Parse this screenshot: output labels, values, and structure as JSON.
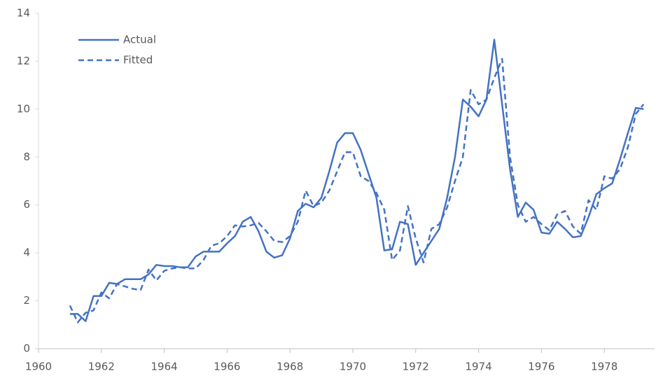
{
  "chart_data": {
    "type": "line",
    "x": [
      1961,
      1961.25,
      1961.5,
      1961.75,
      1962,
      1962.25,
      1962.5,
      1962.75,
      1963,
      1963.25,
      1963.5,
      1963.75,
      1964,
      1964.25,
      1964.5,
      1964.75,
      1965,
      1965.25,
      1965.5,
      1965.75,
      1966,
      1966.25,
      1966.5,
      1966.75,
      1967,
      1967.25,
      1967.5,
      1967.75,
      1968,
      1968.25,
      1968.5,
      1968.75,
      1969,
      1969.25,
      1969.5,
      1969.75,
      1970,
      1970.25,
      1970.5,
      1970.75,
      1971,
      1971.25,
      1971.5,
      1971.75,
      1972,
      1972.25,
      1972.5,
      1972.75,
      1973,
      1973.25,
      1973.5,
      1973.75,
      1974,
      1974.25,
      1974.5,
      1974.75,
      1975,
      1975.25,
      1975.5,
      1975.75,
      1976,
      1976.25,
      1976.5,
      1976.75,
      1977,
      1977.25,
      1977.5,
      1977.75,
      1978,
      1978.25,
      1978.5,
      1978.75,
      1979,
      1979.25
    ],
    "series": [
      {
        "name": "Actual",
        "color": "#4472c4",
        "dashed": false,
        "values": [
          1.45,
          1.45,
          1.15,
          2.2,
          2.2,
          2.75,
          2.7,
          2.9,
          2.9,
          2.9,
          3.1,
          3.5,
          3.45,
          3.45,
          3.4,
          3.4,
          3.85,
          4.05,
          4.05,
          4.05,
          4.4,
          4.7,
          5.3,
          5.5,
          4.9,
          4.05,
          3.8,
          3.9,
          4.6,
          5.75,
          6.05,
          5.9,
          6.3,
          7.4,
          8.6,
          9.0,
          9.0,
          8.3,
          7.3,
          6.3,
          4.1,
          4.15,
          5.3,
          5.2,
          3.5,
          4.0,
          4.5,
          5.0,
          6.3,
          8.0,
          10.4,
          10.1,
          9.7,
          10.4,
          12.9,
          10.2,
          7.5,
          5.5,
          6.1,
          5.8,
          4.85,
          4.8,
          5.3,
          5.0,
          4.65,
          4.7,
          5.5,
          6.45,
          6.7,
          6.9,
          7.9,
          9.0,
          10.05,
          10.0
        ]
      },
      {
        "name": "Fitted",
        "color": "#4472c4",
        "dashed": true,
        "values": [
          1.8,
          1.1,
          1.5,
          1.6,
          2.35,
          2.1,
          2.7,
          2.6,
          2.5,
          2.45,
          3.3,
          2.85,
          3.25,
          3.35,
          3.4,
          3.35,
          3.35,
          3.7,
          4.3,
          4.4,
          4.7,
          5.15,
          5.1,
          5.15,
          5.25,
          4.9,
          4.5,
          4.45,
          4.7,
          5.3,
          6.6,
          5.95,
          6.1,
          6.6,
          7.4,
          8.2,
          8.2,
          7.2,
          7.0,
          6.5,
          5.8,
          3.7,
          4.1,
          5.95,
          4.6,
          3.6,
          5.0,
          5.2,
          5.9,
          7.0,
          8.0,
          10.8,
          10.2,
          10.4,
          11.3,
          12.1,
          8.0,
          6.0,
          5.3,
          5.5,
          5.2,
          4.95,
          5.6,
          5.75,
          5.1,
          4.8,
          6.2,
          5.8,
          7.2,
          7.1,
          7.5,
          8.4,
          9.8,
          10.2
        ]
      }
    ],
    "xlim": [
      1960,
      1979.6
    ],
    "xticks": [
      1960,
      1962,
      1964,
      1966,
      1968,
      1970,
      1972,
      1974,
      1976,
      1978
    ],
    "ylim": [
      0,
      14
    ],
    "yticks": [
      0,
      2,
      4,
      6,
      8,
      10,
      12,
      14
    ],
    "legend": "top-left"
  }
}
